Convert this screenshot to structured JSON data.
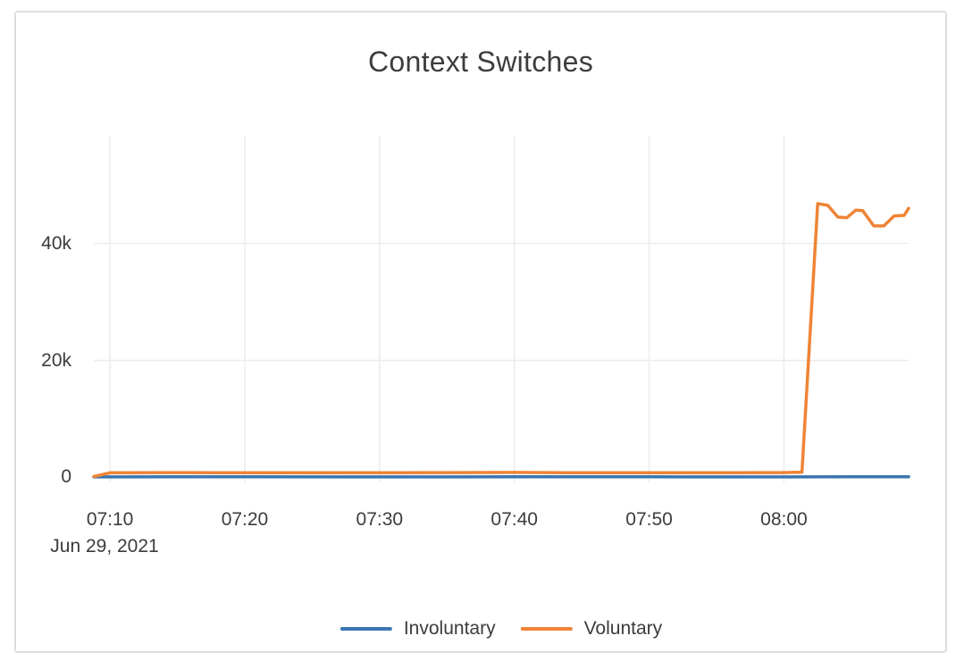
{
  "chart_data": {
    "type": "line",
    "title": "Context Switches",
    "date": "Jun 29, 2021",
    "xlabel": "",
    "ylabel": "",
    "grid": true,
    "legend_position": "bottom",
    "x_range": [
      "07:08:48",
      "08:09:15"
    ],
    "y_range": [
      -840,
      58400
    ],
    "x_ticks": [
      "07:10",
      "07:20",
      "07:30",
      "07:40",
      "07:50",
      "08:00"
    ],
    "y_ticks": [
      {
        "value": 0,
        "label": "0"
      },
      {
        "value": 20000,
        "label": "20k"
      },
      {
        "value": 40000,
        "label": "40k"
      }
    ],
    "series": [
      {
        "name": "Involuntary",
        "color": "#3a76b0",
        "points": [
          [
            "07:08:48",
            90
          ],
          [
            "07:15:00",
            100
          ],
          [
            "07:20:00",
            100
          ],
          [
            "07:30:00",
            95
          ],
          [
            "07:40:00",
            100
          ],
          [
            "07:50:00",
            100
          ],
          [
            "08:00:00",
            95
          ],
          [
            "08:05:00",
            110
          ],
          [
            "08:09:15",
            120
          ]
        ]
      },
      {
        "name": "Voluntary",
        "color": "#ef8436",
        "points": [
          [
            "07:08:48",
            150
          ],
          [
            "07:10:00",
            800
          ],
          [
            "07:15:00",
            820
          ],
          [
            "07:20:00",
            800
          ],
          [
            "07:25:00",
            810
          ],
          [
            "07:30:00",
            790
          ],
          [
            "07:35:00",
            820
          ],
          [
            "07:40:00",
            850
          ],
          [
            "07:45:00",
            800
          ],
          [
            "07:50:00",
            810
          ],
          [
            "07:55:00",
            800
          ],
          [
            "08:00:00",
            820
          ],
          [
            "08:01:20",
            900
          ],
          [
            "08:02:30",
            46800
          ],
          [
            "08:03:15",
            46500
          ],
          [
            "08:04:00",
            44500
          ],
          [
            "08:04:40",
            44400
          ],
          [
            "08:05:20",
            45700
          ],
          [
            "08:05:50",
            45600
          ],
          [
            "08:06:40",
            43000
          ],
          [
            "08:07:25",
            43000
          ],
          [
            "08:08:10",
            44700
          ],
          [
            "08:08:55",
            44800
          ],
          [
            "08:09:15",
            46000
          ]
        ]
      }
    ]
  },
  "colors": {
    "grid": "#ececec",
    "text": "#3c3c3c",
    "card_border": "#dddddd",
    "background": "#ffffff"
  }
}
